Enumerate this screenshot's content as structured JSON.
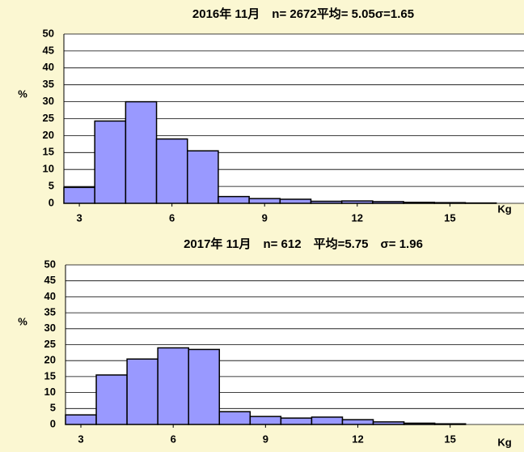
{
  "chart_data": [
    {
      "type": "histogram",
      "title": "2016年 11月　n= 2672平均= 5.05σ=1.65",
      "y_label": "%",
      "x_label": "Kg",
      "bins": [
        2.5,
        3.5,
        4.5,
        5.5,
        6.5,
        7.5,
        8.5,
        9.5,
        10.5,
        11.5,
        12.5,
        13.5,
        14.5,
        15.5,
        16.5
      ],
      "values": [
        4.7,
        24.3,
        30,
        19,
        15.5,
        2,
        1.4,
        1.2,
        0.6,
        0.7,
        0.5,
        0.3,
        0.2,
        0.1
      ],
      "color": "#9999ff",
      "xlim": [
        2.5,
        17.4
      ],
      "xticks": [
        3,
        6,
        9,
        12,
        15
      ],
      "ylim": [
        0,
        50
      ],
      "yticks": [
        0,
        5,
        10,
        15,
        20,
        25,
        30,
        35,
        40,
        45,
        50
      ],
      "grid": true
    },
    {
      "type": "histogram",
      "title": "2017年 11月　n= 612　平均=5.75　σ= 1.96",
      "y_label": "%",
      "x_label": "Kg",
      "bins": [
        2.5,
        3.5,
        4.5,
        5.5,
        6.5,
        7.5,
        8.5,
        9.5,
        10.5,
        11.5,
        12.5,
        13.5,
        14.5,
        15.5,
        16.5
      ],
      "values": [
        3,
        15.5,
        20.5,
        24,
        23.5,
        4,
        2.5,
        2,
        2.3,
        1.5,
        0.8,
        0.4,
        0.2,
        0
      ],
      "color": "#9999ff",
      "xlim": [
        2.5,
        17.4
      ],
      "xticks": [
        3,
        6,
        9,
        12,
        15
      ],
      "ylim": [
        0,
        50
      ],
      "yticks": [
        0,
        5,
        10,
        15,
        20,
        25,
        30,
        35,
        40,
        45,
        50
      ],
      "grid": true
    }
  ]
}
